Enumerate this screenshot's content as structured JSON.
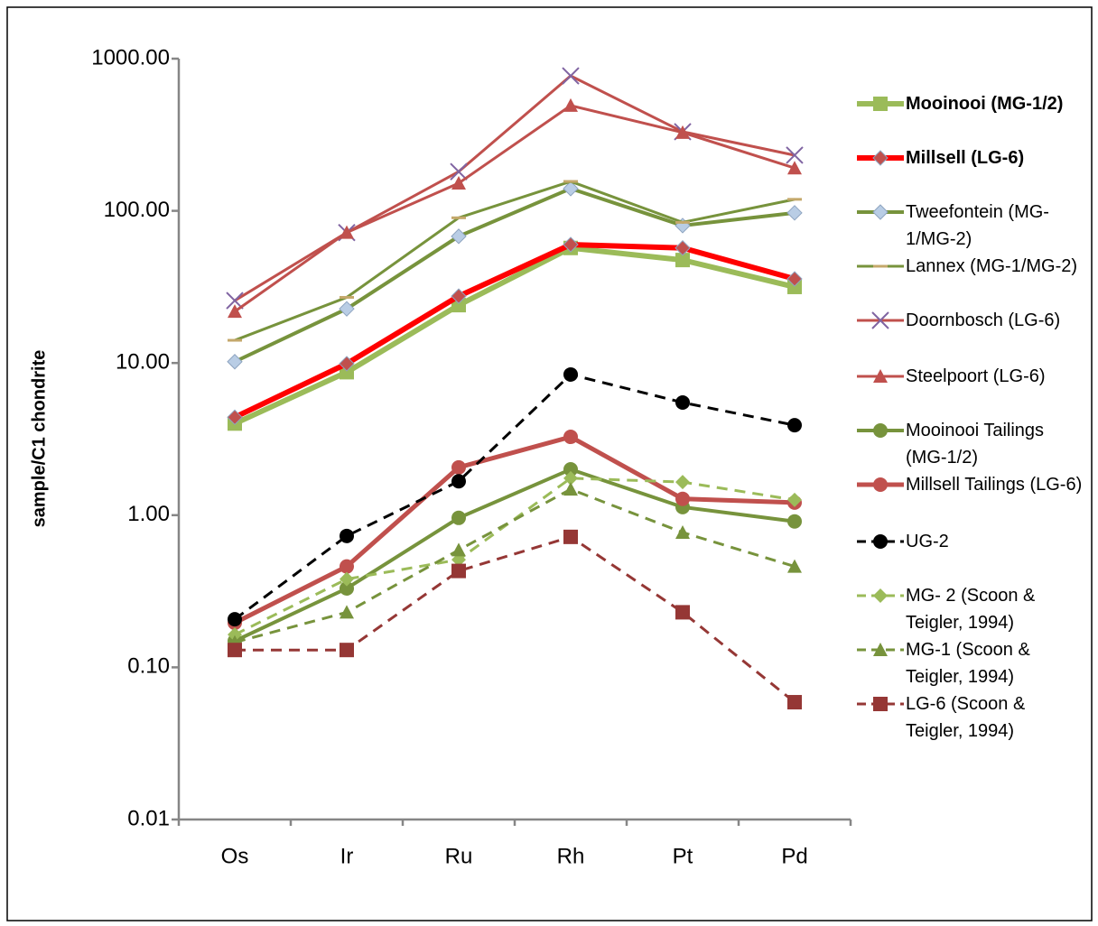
{
  "chart_data": {
    "type": "line",
    "y_label": "sample/C1 chondrite",
    "log_y": true,
    "categories": [
      "Os",
      "Ir",
      "Ru",
      "Rh",
      "Pt",
      "Pd"
    ],
    "ylim": [
      0.01,
      1000
    ],
    "yticks": [
      0.01,
      {
        "value": 0.1,
        "label": "0.10"
      },
      {
        "value": 1,
        "label": "1.00"
      },
      {
        "value": 10,
        "label": "10.00"
      },
      {
        "value": 100,
        "label": "100.00"
      },
      {
        "value": 1000,
        "label": "1000.00"
      }
    ],
    "legend": "right",
    "series": [
      {
        "name": "Mooinooi (MG-1/2)",
        "color": "#9bbb59",
        "marker": "square",
        "marker_color": "#9bbb59",
        "line_width": 6,
        "dash": false,
        "bold": true,
        "values": [
          4.0,
          8.7,
          24,
          57,
          47.5,
          31.6
        ]
      },
      {
        "name": "Millsell (LG-6)",
        "color": "#ff0000",
        "marker": "diamond",
        "marker_color": "#c0504d",
        "line_width": 6,
        "dash": false,
        "bold": true,
        "values": [
          4.4,
          9.9,
          27.5,
          60,
          57,
          35.7
        ]
      },
      {
        "name": "Tweefontein (MG-1/MG-2)",
        "color": "#77933c",
        "marker": "diamond",
        "marker_color": "#b9cde5",
        "line_width": 4,
        "dash": false,
        "values": [
          10.2,
          22.7,
          68,
          140,
          80,
          97
        ]
      },
      {
        "name": "Lannex (MG-1/MG-2)",
        "color": "#77933c",
        "marker": "dash",
        "marker_color": "#c4a86b",
        "line_width": 3,
        "dash": false,
        "values": [
          14.1,
          27,
          90,
          156,
          84,
          119
        ]
      },
      {
        "name": "Doornbosch (LG-6)",
        "color": "#c0504d",
        "marker": "x",
        "marker_color": "#8064a2",
        "line_width": 3,
        "dash": false,
        "values": [
          25.7,
          72,
          181,
          771,
          331,
          232
        ]
      },
      {
        "name": "Steelpoort (LG-6)",
        "color": "#c0504d",
        "marker": "triangle",
        "marker_color": "#c0504d",
        "line_width": 3,
        "dash": false,
        "values": [
          21.8,
          72,
          152,
          492,
          327,
          191
        ]
      },
      {
        "name": "Mooinooi Tailings (MG-1/2)",
        "color": "#77933c",
        "marker": "circle",
        "marker_color": "#77933c",
        "line_width": 4,
        "dash": false,
        "values": [
          0.149,
          0.33,
          0.96,
          2.0,
          1.13,
          0.91
        ]
      },
      {
        "name": "Millsell Tailings (LG-6)",
        "color": "#c0504d",
        "marker": "circle",
        "marker_color": "#c0504d",
        "line_width": 5,
        "dash": false,
        "values": [
          0.196,
          0.46,
          2.06,
          3.27,
          1.28,
          1.21
        ]
      },
      {
        "name": "UG-2",
        "color": "#000000",
        "marker": "circle",
        "marker_color": "#000000",
        "line_width": 3,
        "dash": true,
        "values": [
          0.207,
          0.73,
          1.67,
          8.4,
          5.5,
          3.9
        ]
      },
      {
        "name": "MG- 2 (Scoon & Teigler, 1994)",
        "color": "#9bbb59",
        "marker": "diamond",
        "marker_color": "#9bbb59",
        "line_width": 3,
        "dash": true,
        "values": [
          0.164,
          0.38,
          0.51,
          1.75,
          1.65,
          1.26
        ]
      },
      {
        "name": "MG-1 (Scoon & Teigler, 1994)",
        "color": "#77933c",
        "marker": "triangle",
        "marker_color": "#77933c",
        "line_width": 3,
        "dash": true,
        "values": [
          0.146,
          0.23,
          0.59,
          1.48,
          0.77,
          0.46
        ]
      },
      {
        "name": "LG-6 (Scoon & Teigler, 1994)",
        "color": "#953735",
        "marker": "square",
        "marker_color": "#953735",
        "line_width": 3,
        "dash": true,
        "values": [
          0.13,
          0.13,
          0.43,
          0.72,
          0.23,
          0.059
        ]
      }
    ]
  }
}
